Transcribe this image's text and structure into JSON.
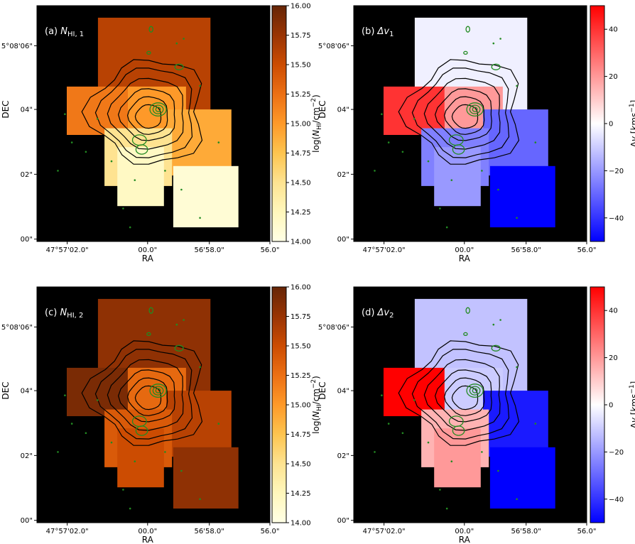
{
  "chart_data": [
    {
      "type": "heatmap",
      "panel": "(a)",
      "title": "(a) N_HI,1",
      "title_main": "N",
      "title_sub": "HI, 1",
      "xlabel": "RA",
      "ylabel": "DEC",
      "xticks": [
        "47°57'02.0\"",
        "00.0\"",
        "56'58.0\"",
        "56.0\""
      ],
      "yticks": [
        "5°08'06\"",
        "04\"",
        "02\"",
        "00\""
      ],
      "colorbar": {
        "label": "log(N_HI/cm^-2)",
        "label_a": "log(",
        "label_n": "N",
        "label_sub": "HI",
        "label_b": "/cm",
        "label_sup": "−2",
        "label_c": ")",
        "ticks": [
          "16.00",
          "15.75",
          "15.50",
          "15.25",
          "15.00",
          "14.75",
          "14.50",
          "14.25",
          "14.00"
        ],
        "range": [
          14.0,
          16.0
        ],
        "cmap": "YlOrBr",
        "colors": [
          "#ffffe5",
          "#fff7bc",
          "#fee391",
          "#fec44f",
          "#fe9929",
          "#ec7014",
          "#cc4c02",
          "#993404",
          "#662506"
        ]
      },
      "cells": [
        {
          "value": 15.6
        },
        {
          "value": 15.2
        },
        {
          "value": 15.0
        },
        {
          "value": 14.9
        },
        {
          "value": 14.5
        },
        {
          "value": 14.2
        },
        {
          "value": 14.1
        }
      ]
    },
    {
      "type": "heatmap",
      "panel": "(b)",
      "title": "(b) Δv1",
      "title_main": "Δv",
      "title_sub": "1",
      "xlabel": "RA",
      "ylabel": "DEC",
      "xticks": [
        "47°57'02.0\"",
        "00.0\"",
        "56'58.0\"",
        "56.0\""
      ],
      "yticks": [
        "5°08'06\"",
        "04\"",
        "02\"",
        "00\""
      ],
      "colorbar": {
        "label": "Δv [kms^-1]",
        "label_a": "Δ",
        "label_n": "v",
        "label_b": " [kms",
        "label_sup": "−1",
        "label_c": "]",
        "ticks": [
          "40",
          "20",
          "0",
          "−20",
          "−40"
        ],
        "range": [
          -50,
          50
        ],
        "cmap": "bwr",
        "colors": [
          "#0000ff",
          "#ffffff",
          "#ff0000"
        ]
      },
      "cells": [
        {
          "value": -3
        },
        {
          "value": 40
        },
        {
          "value": 20
        },
        {
          "value": -30
        },
        {
          "value": -25
        },
        {
          "value": -20
        },
        {
          "value": -50
        }
      ]
    },
    {
      "type": "heatmap",
      "panel": "(c)",
      "title": "(c) N_HI,2",
      "title_main": "N",
      "title_sub": "HI, 2",
      "xlabel": "RA",
      "ylabel": "DEC",
      "xticks": [
        "47°57'02.0\"",
        "00.0\"",
        "56'58.0\"",
        "56.0\""
      ],
      "yticks": [
        "5°08'06\"",
        "04\"",
        "02\"",
        "00\""
      ],
      "colorbar": {
        "label": "log(N_HI/cm^-2)",
        "label_a": "log(",
        "label_n": "N",
        "label_sub": "HI",
        "label_b": "/cm",
        "label_sup": "−2",
        "label_c": ")",
        "ticks": [
          "16.00",
          "15.75",
          "15.50",
          "15.25",
          "15.00",
          "14.75",
          "14.50",
          "14.25",
          "14.00"
        ],
        "range": [
          14.0,
          16.0
        ],
        "cmap": "YlOrBr",
        "colors": [
          "#ffffe5",
          "#fff7bc",
          "#fee391",
          "#fec44f",
          "#fe9929",
          "#ec7014",
          "#cc4c02",
          "#993404",
          "#662506"
        ]
      },
      "cells": [
        {
          "value": 15.8
        },
        {
          "value": 15.9
        },
        {
          "value": 15.3
        },
        {
          "value": 15.6
        },
        {
          "value": 15.4
        },
        {
          "value": 15.5
        },
        {
          "value": 15.8
        }
      ]
    },
    {
      "type": "heatmap",
      "panel": "(d)",
      "title": "(d) Δv2",
      "title_main": "Δv",
      "title_sub": "2",
      "xlabel": "RA",
      "ylabel": "DEC",
      "xticks": [
        "47°57'02.0\"",
        "00.0\"",
        "56'58.0\"",
        "56.0\""
      ],
      "yticks": [
        "5°08'06\"",
        "04\"",
        "02\"",
        "00\""
      ],
      "colorbar": {
        "label": "Δv [kms^-1]",
        "label_a": "Δ",
        "label_n": "v",
        "label_b": " [kms",
        "label_sup": "−1",
        "label_c": "]",
        "ticks": [
          "40",
          "20",
          "0",
          "−20",
          "−40"
        ],
        "range": [
          -50,
          50
        ],
        "cmap": "bwr",
        "colors": [
          "#0000ff",
          "#ffffff",
          "#ff0000"
        ]
      },
      "cells": [
        {
          "value": -12
        },
        {
          "value": 50
        },
        {
          "value": -10
        },
        {
          "value": -45
        },
        {
          "value": 15
        },
        {
          "value": 20
        },
        {
          "value": -50
        }
      ]
    }
  ],
  "colors": {
    "background": "#000000",
    "contour_outer": "#000000",
    "contour_inner": "#228b22"
  }
}
